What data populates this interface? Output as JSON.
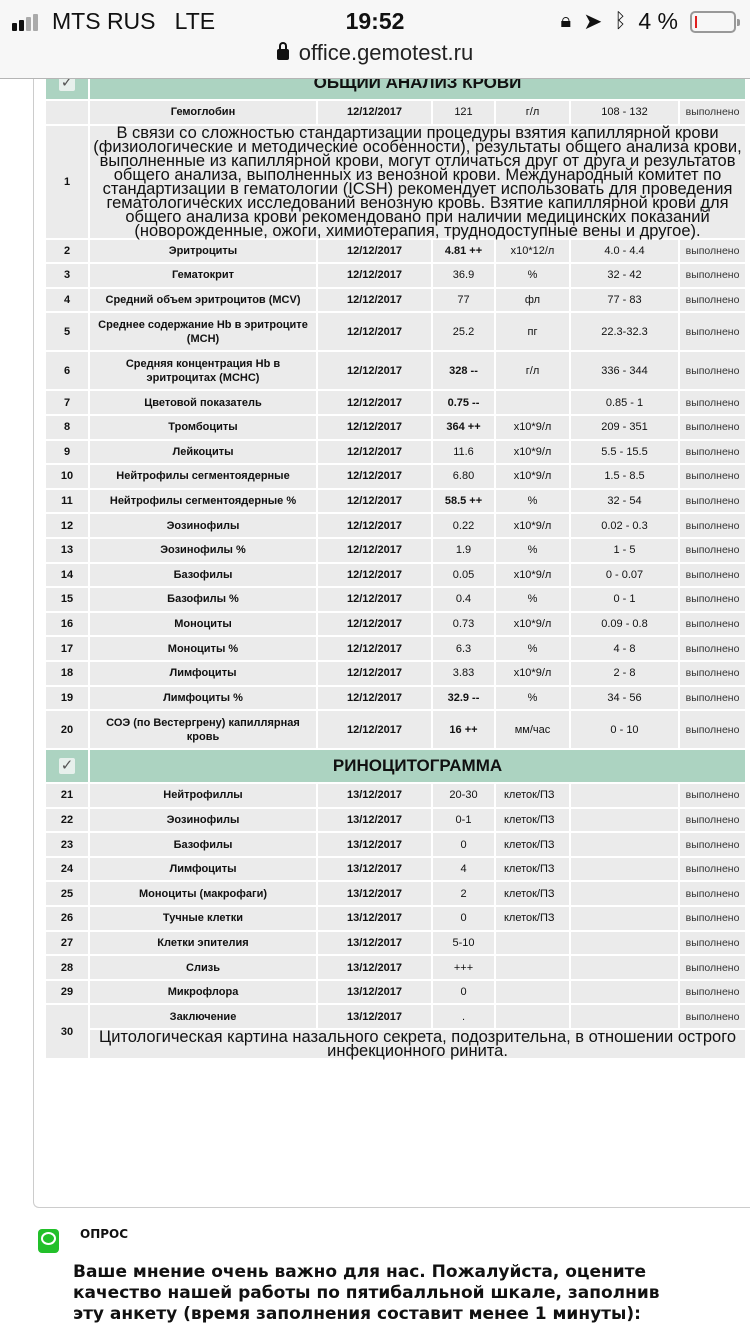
{
  "status_bar": {
    "carrier": "MTS RUS",
    "network": "LTE",
    "time": "19:52",
    "battery": "4 %",
    "battery_level": 4
  },
  "browser": {
    "url": "office.gemotest.ru"
  },
  "sections": [
    {
      "title": "ОБЩИЙ АНАЛИЗ КРОВИ",
      "rows": [
        {
          "name": "Гемоглобин",
          "date": "12/12/2017",
          "value": "121",
          "unit": "г/л",
          "ref": "108 - 132",
          "status": "выполнено"
        }
      ],
      "note_row": {
        "num": "1",
        "text": "В связи со сложностью стандартизации процедуры взятия капиллярной крови (физиологические и методические особенности), результаты общего анализа крови, выполненные из капиллярной крови, могут отличаться друг от друга и результатов общего анализа, выполненных из венозной крови. Международный комитет по стандартизации в гематологии (ICSH) рекомендует использовать для проведения гематологических исследований венозную кровь. Взятие капиллярной крови для общего анализа крови рекомендовано при наличии медицинских показаний (новорожденные, ожоги, химиотерапия, труднодоступные вены и другое)."
      },
      "rows2": [
        {
          "num": "2",
          "name": "Эритроциты",
          "date": "12/12/2017",
          "value": "4.81 ++",
          "flag": true,
          "unit": "x10*12/л",
          "ref": "4.0 - 4.4",
          "status": "выполнено"
        },
        {
          "num": "3",
          "name": "Гематокрит",
          "date": "12/12/2017",
          "value": "36.9",
          "unit": "%",
          "ref": "32 - 42",
          "status": "выполнено"
        },
        {
          "num": "4",
          "name": "Средний объем эритроцитов (MCV)",
          "date": "12/12/2017",
          "value": "77",
          "unit": "фл",
          "ref": "77 - 83",
          "status": "выполнено"
        },
        {
          "num": "5",
          "name": "Среднее содержание Hb в эритроците (MCH)",
          "date": "12/12/2017",
          "value": "25.2",
          "unit": "пг",
          "ref": "22.3-32.3",
          "status": "выполнено",
          "tall": true
        },
        {
          "num": "6",
          "name": "Средняя концентрация Hb в эритроцитах (MCHC)",
          "date": "12/12/2017",
          "value": "328 --",
          "flag": true,
          "unit": "г/л",
          "ref": "336 - 344",
          "status": "выполнено",
          "tall": true
        },
        {
          "num": "7",
          "name": "Цветовой показатель",
          "date": "12/12/2017",
          "value": "0.75 --",
          "flag": true,
          "unit": "",
          "ref": "0.85 - 1",
          "status": "выполнено"
        },
        {
          "num": "8",
          "name": "Тромбоциты",
          "date": "12/12/2017",
          "value": "364 ++",
          "flag": true,
          "unit": "x10*9/л",
          "ref": "209 - 351",
          "status": "выполнено"
        },
        {
          "num": "9",
          "name": "Лейкоциты",
          "date": "12/12/2017",
          "value": "11.6",
          "unit": "x10*9/л",
          "ref": "5.5 - 15.5",
          "status": "выполнено"
        },
        {
          "num": "10",
          "name": "Нейтрофилы сегментоядерные",
          "date": "12/12/2017",
          "value": "6.80",
          "unit": "x10*9/л",
          "ref": "1.5 - 8.5",
          "status": "выполнено"
        },
        {
          "num": "11",
          "name": "Нейтрофилы сегментоядерные %",
          "date": "12/12/2017",
          "value": "58.5 ++",
          "flag": true,
          "unit": "%",
          "ref": "32 - 54",
          "status": "выполнено"
        },
        {
          "num": "12",
          "name": "Эозинофилы",
          "date": "12/12/2017",
          "value": "0.22",
          "unit": "x10*9/л",
          "ref": "0.02 - 0.3",
          "status": "выполнено"
        },
        {
          "num": "13",
          "name": "Эозинофилы %",
          "date": "12/12/2017",
          "value": "1.9",
          "unit": "%",
          "ref": "1 - 5",
          "status": "выполнено"
        },
        {
          "num": "14",
          "name": "Базофилы",
          "date": "12/12/2017",
          "value": "0.05",
          "unit": "x10*9/л",
          "ref": "0 - 0.07",
          "status": "выполнено"
        },
        {
          "num": "15",
          "name": "Базофилы %",
          "date": "12/12/2017",
          "value": "0.4",
          "unit": "%",
          "ref": "0 - 1",
          "status": "выполнено"
        },
        {
          "num": "16",
          "name": "Моноциты",
          "date": "12/12/2017",
          "value": "0.73",
          "unit": "x10*9/л",
          "ref": "0.09 - 0.8",
          "status": "выполнено"
        },
        {
          "num": "17",
          "name": "Моноциты %",
          "date": "12/12/2017",
          "value": "6.3",
          "unit": "%",
          "ref": "4 - 8",
          "status": "выполнено"
        },
        {
          "num": "18",
          "name": "Лимфоциты",
          "date": "12/12/2017",
          "value": "3.83",
          "unit": "x10*9/л",
          "ref": "2 - 8",
          "status": "выполнено"
        },
        {
          "num": "19",
          "name": "Лимфоциты %",
          "date": "12/12/2017",
          "value": "32.9 --",
          "flag": true,
          "unit": "%",
          "ref": "34 - 56",
          "status": "выполнено"
        },
        {
          "num": "20",
          "name": "СОЭ (по Вестергрену) капиллярная кровь",
          "date": "12/12/2017",
          "value": "16 ++",
          "flag": true,
          "unit": "мм/час",
          "ref": "0 - 10",
          "status": "выполнено",
          "tall": true
        }
      ]
    },
    {
      "title": "РИНОЦИТОГРАММА",
      "rows": [
        {
          "num": "21",
          "name": "Нейтрофиллы",
          "date": "13/12/2017",
          "value": "20-30",
          "unit": "клеток/ПЗ",
          "ref": "",
          "status": "выполнено"
        },
        {
          "num": "22",
          "name": "Эозинофилы",
          "date": "13/12/2017",
          "value": "0-1",
          "unit": "клеток/ПЗ",
          "ref": "",
          "status": "выполнено"
        },
        {
          "num": "23",
          "name": "Базофилы",
          "date": "13/12/2017",
          "value": "0",
          "unit": "клеток/ПЗ",
          "ref": "",
          "status": "выполнено"
        },
        {
          "num": "24",
          "name": "Лимфоциты",
          "date": "13/12/2017",
          "value": "4",
          "unit": "клеток/ПЗ",
          "ref": "",
          "status": "выполнено"
        },
        {
          "num": "25",
          "name": "Моноциты (макрофаги)",
          "date": "13/12/2017",
          "value": "2",
          "unit": "клеток/ПЗ",
          "ref": "",
          "status": "выполнено"
        },
        {
          "num": "26",
          "name": "Тучные клетки",
          "date": "13/12/2017",
          "value": "0",
          "unit": "клеток/ПЗ",
          "ref": "",
          "status": "выполнено"
        },
        {
          "num": "27",
          "name": "Клетки эпителия",
          "date": "13/12/2017",
          "value": "5-10",
          "unit": "",
          "ref": "",
          "status": "выполнено"
        },
        {
          "num": "28",
          "name": "Слизь",
          "date": "13/12/2017",
          "value": "+++",
          "unit": "",
          "ref": "",
          "status": "выполнено"
        },
        {
          "num": "29",
          "name": "Микрофлора",
          "date": "13/12/2017",
          "value": "0",
          "unit": "",
          "ref": "",
          "status": "выполнено"
        }
      ],
      "conclusion": {
        "num": "30",
        "name": "Заключение",
        "date": "13/12/2017",
        "value": ".",
        "status": "выполнено",
        "text": "Цитологическая картина назального секрета, подозрительна, в отношении острого инфекционного ринита."
      }
    }
  ],
  "survey": {
    "title": "ОПРОС",
    "text": "Ваше мнение очень важно для нас. Пожалуйста, оцените качество нашей работы по пятибалльной шкале, заполнив эту анкету (время заполнения составит менее 1 минуты):"
  }
}
